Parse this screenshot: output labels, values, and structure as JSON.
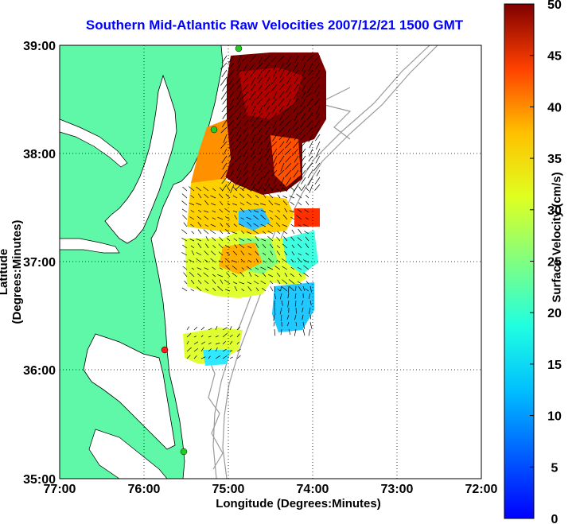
{
  "title": "Southern Mid-Atlantic Raw Velocities 2007/12/21 1500 GMT",
  "xlabel": "Longitude (Degrees:Minutes)",
  "ylabel": "Latitude (Degrees:Minutes)",
  "colorbar": {
    "label": "Surface Velocity (cm/s)",
    "min": 0,
    "max": 50,
    "ticks": [
      "0",
      "5",
      "10",
      "15",
      "20",
      "25",
      "30",
      "35",
      "40",
      "45",
      "50"
    ]
  },
  "x_ticks": [
    "77:00",
    "76:00",
    "75:00",
    "74:00",
    "73:00",
    "72:00"
  ],
  "y_ticks": [
    "39:00",
    "38:00",
    "37:00",
    "36:00",
    "35:00"
  ],
  "colors": {
    "land": "#5ff7a8",
    "coastline": "#000000",
    "bathymetry": "#9a9a9a",
    "title": "#0000ff",
    "station_green": "#22cc22",
    "station_red": "#ff1a1a"
  }
}
